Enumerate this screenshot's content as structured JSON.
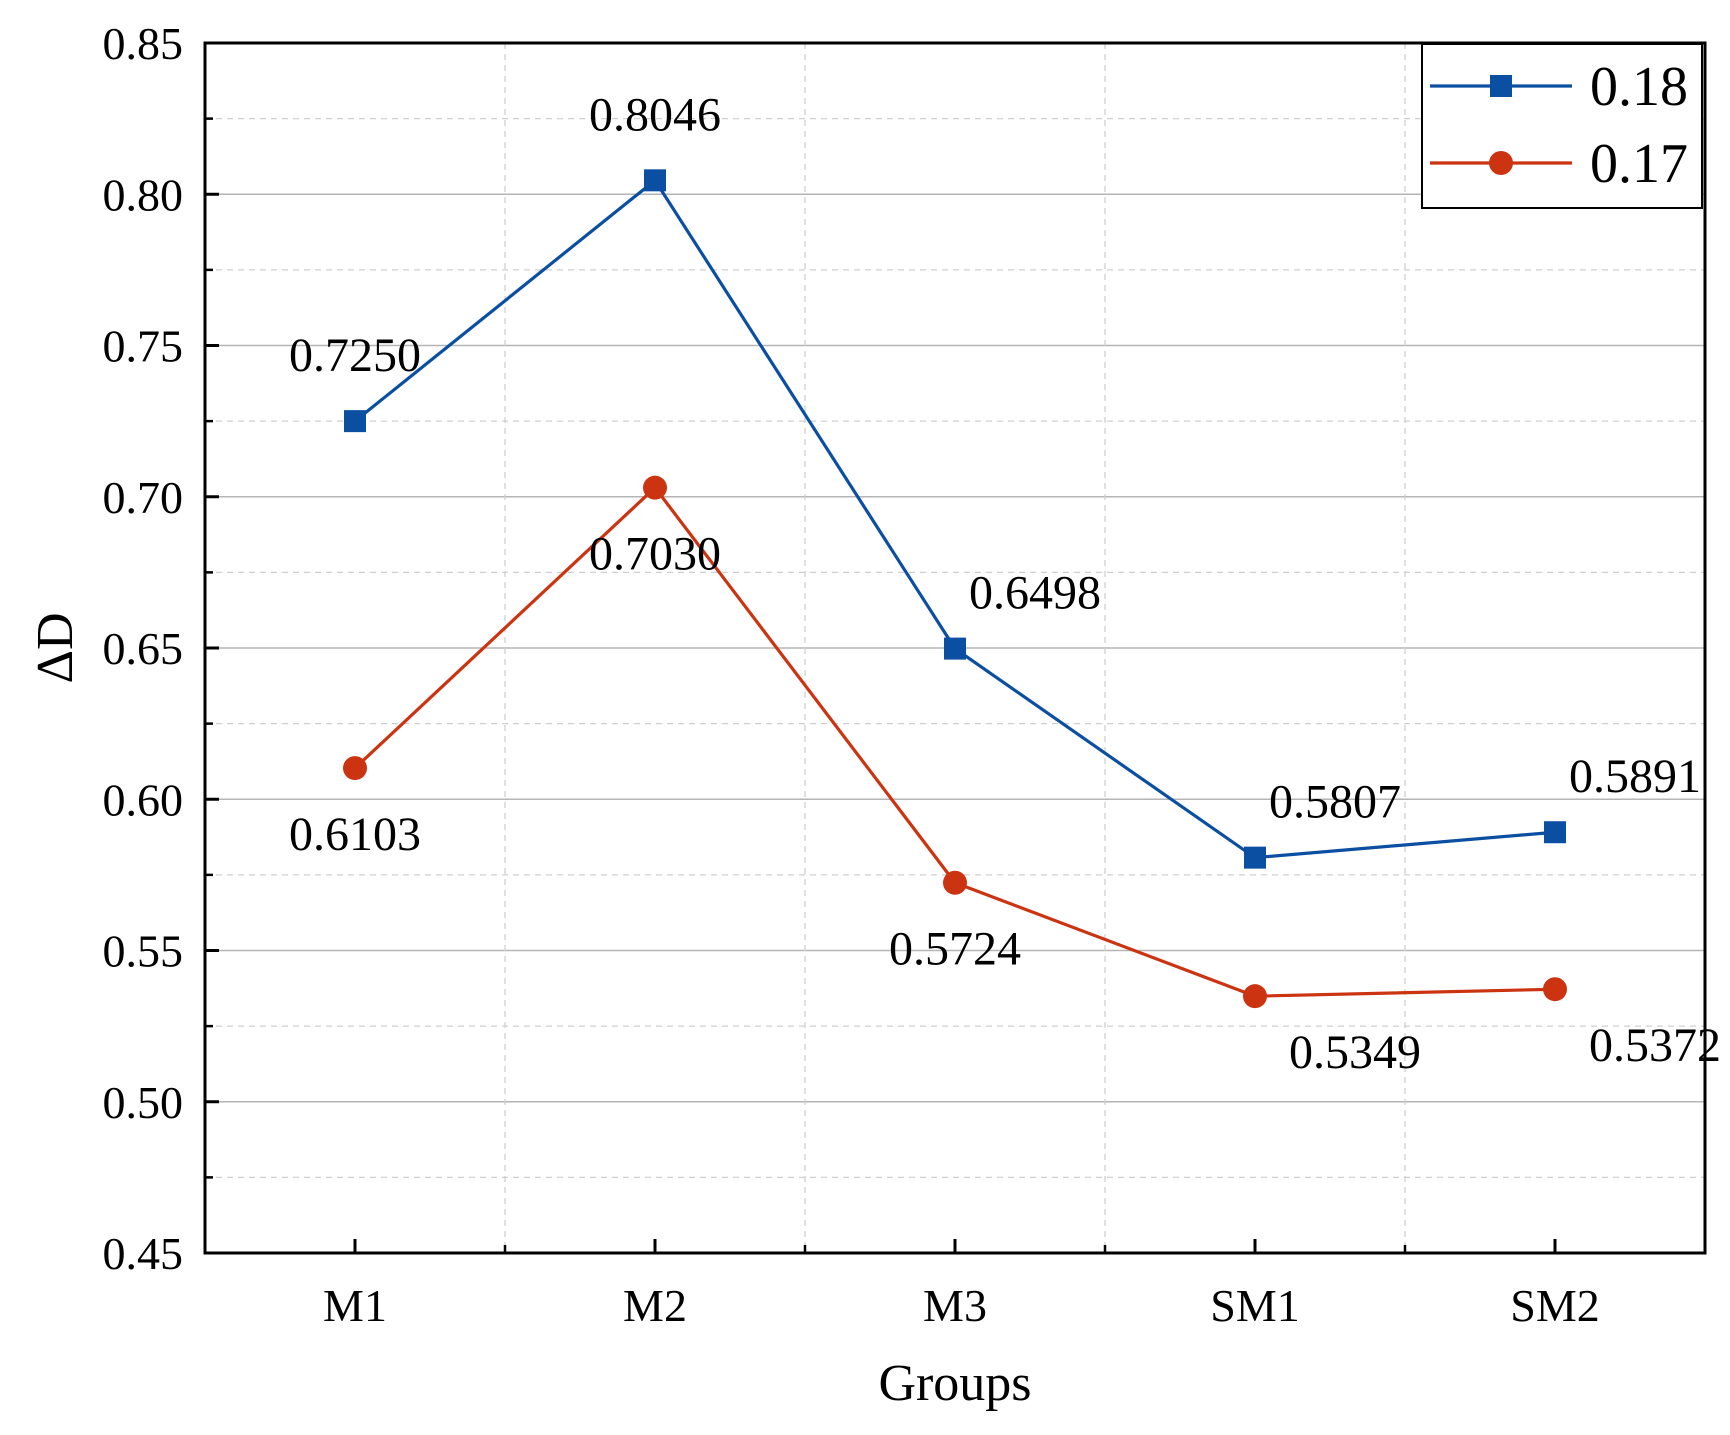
{
  "chart_data": {
    "type": "line",
    "title": "",
    "xlabel": "Groups",
    "ylabel": "ΔD",
    "categories": [
      "M1",
      "M2",
      "M3",
      "SM1",
      "SM2"
    ],
    "ylim": [
      0.45,
      0.85
    ],
    "yticks": [
      "0.45",
      "0.50",
      "0.55",
      "0.60",
      "0.65",
      "0.70",
      "0.75",
      "0.80",
      "0.85"
    ],
    "grid": true,
    "legend_position": "top-right",
    "series": [
      {
        "name": "0.18",
        "color": "#0b4fa3",
        "marker": "square",
        "values": [
          0.725,
          0.8046,
          0.6498,
          0.5807,
          0.5891
        ],
        "labels": [
          "0.7250",
          "0.8046",
          "0.6498",
          "0.5807",
          "0.5891"
        ],
        "label_placement": [
          "above",
          "above",
          "above-right",
          "above-right",
          "above-right"
        ]
      },
      {
        "name": "0.17",
        "color": "#cc3311",
        "marker": "circle",
        "values": [
          0.6103,
          0.703,
          0.5724,
          0.5349,
          0.5372
        ],
        "labels": [
          "0.6103",
          "0.7030",
          "0.5724",
          "0.5349",
          "0.5372"
        ],
        "label_placement": [
          "below",
          "below",
          "below",
          "below-right",
          "below-right"
        ]
      }
    ]
  }
}
